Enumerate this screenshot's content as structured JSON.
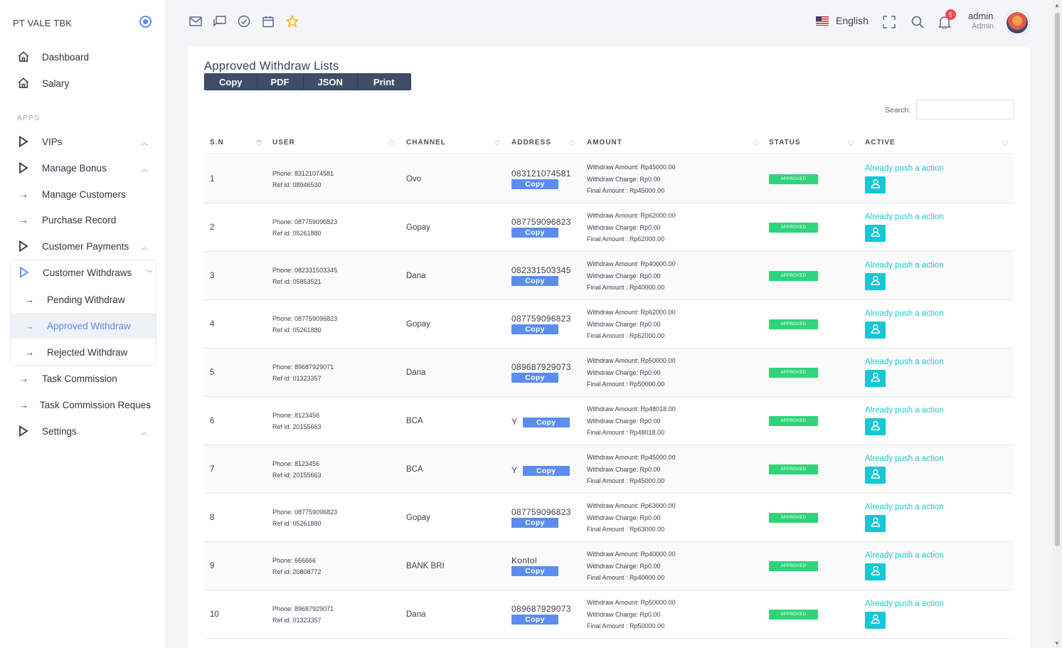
{
  "brand": "PT VALE TBK",
  "sidebar": {
    "top_items": [
      {
        "label": "Dashboard"
      },
      {
        "label": "Salary"
      }
    ],
    "apps_label": "APPS",
    "items": [
      {
        "label": "VIPs"
      },
      {
        "label": "Manage Bonus"
      },
      {
        "label": "Manage Customers"
      },
      {
        "label": "Purchase Record"
      },
      {
        "label": "Customer Payments"
      },
      {
        "label": "Customer Withdraws"
      },
      {
        "label": "Task Commission"
      },
      {
        "label": "Task Commission Reques"
      },
      {
        "label": "Settings"
      }
    ],
    "withdraw_sub": [
      {
        "label": "Pending Withdraw"
      },
      {
        "label": "Approved Withdraw"
      },
      {
        "label": "Rejected Withdraw"
      }
    ]
  },
  "topbar": {
    "language": "English",
    "notification_count": "5",
    "user_name": "admin",
    "user_role": "Admin"
  },
  "card": {
    "title": "Approved Withdraw Lists",
    "buttons": [
      "Copy",
      "PDF",
      "JSON",
      "Print"
    ],
    "search_label": "Search:"
  },
  "table": {
    "headers": [
      "S.N",
      "USER",
      "CHANNEL",
      "ADDRESS",
      "AMOUNT",
      "STATUS",
      "ACTIVE"
    ],
    "copy_label": "Copy",
    "status_label": "APPROVED",
    "action_text": "Already push a action",
    "rows": [
      {
        "sn": "1",
        "phone": "Phone: 83121074581",
        "ref": "Ref id: 08946530",
        "channel": "Ovo",
        "address": "083121074581",
        "amount": "Withdraw Amount: Rp45000.00",
        "charge": "Withdraw Charge: Rp0.00",
        "final": "Final Amount : Rp45000.00"
      },
      {
        "sn": "2",
        "phone": "Phone: 087759096823",
        "ref": "Ref id: 05261880",
        "channel": "Gopay",
        "address": "087759096823",
        "amount": "Withdraw Amount: Rp62000.00",
        "charge": "Withdraw Charge: Rp0.00",
        "final": "Final Amount : Rp62000.00"
      },
      {
        "sn": "3",
        "phone": "Phone: 082331503345",
        "ref": "Ref id: 05853521",
        "channel": "Dana",
        "address": "082331503345",
        "amount": "Withdraw Amount: Rp40000.00",
        "charge": "Withdraw Charge: Rp0.00",
        "final": "Final Amount : Rp40000.00"
      },
      {
        "sn": "4",
        "phone": "Phone: 087759096823",
        "ref": "Ref id: 05261880",
        "channel": "Gopay",
        "address": "087759096823",
        "amount": "Withdraw Amount: Rp62000.00",
        "charge": "Withdraw Charge: Rp0.00",
        "final": "Final Amount : Rp62000.00"
      },
      {
        "sn": "5",
        "phone": "Phone: 89687929071",
        "ref": "Ref id: 01323357",
        "channel": "Dana",
        "address": "089687929073",
        "amount": "Withdraw Amount: Rp50000.00",
        "charge": "Withdraw Charge: Rp0.00",
        "final": "Final Amount : Rp50000.00"
      },
      {
        "sn": "6",
        "phone": "Phone: 8123456",
        "ref": "Ref id: 20155663",
        "channel": "BCA",
        "address": "Y",
        "inline": true,
        "amount": "Withdraw Amount: Rp48018.00",
        "charge": "Withdraw Charge: Rp0.00",
        "final": "Final Amount : Rp48018.00"
      },
      {
        "sn": "7",
        "phone": "Phone: 8123456",
        "ref": "Ref id: 20155663",
        "channel": "BCA",
        "address": "Y",
        "inline": true,
        "amount": "Withdraw Amount: Rp45000.00",
        "charge": "Withdraw Charge: Rp0.00",
        "final": "Final Amount : Rp45000.00"
      },
      {
        "sn": "8",
        "phone": "Phone: 087759096823",
        "ref": "Ref id: 05261880",
        "channel": "Gopay",
        "address": "087759096823",
        "amount": "Withdraw Amount: Rp63000.00",
        "charge": "Withdraw Charge: Rp0.00",
        "final": "Final Amount : Rp63000.00"
      },
      {
        "sn": "9",
        "phone": "Phone: 666666",
        "ref": "Ref id: 20808772",
        "channel": "BANK BRI",
        "address": "Kontol",
        "amount": "Withdraw Amount: Rp40000.00",
        "charge": "Withdraw Charge: Rp0.00",
        "final": "Final Amount : Rp40000.00"
      },
      {
        "sn": "10",
        "phone": "Phone: 89687929071",
        "ref": "Ref id: 01323357",
        "channel": "Dana",
        "address": "089687929073",
        "amount": "Withdraw Amount: Rp50000.00",
        "charge": "Withdraw Charge: Rp0.00",
        "final": "Final Amount : Rp50000.00"
      }
    ]
  }
}
